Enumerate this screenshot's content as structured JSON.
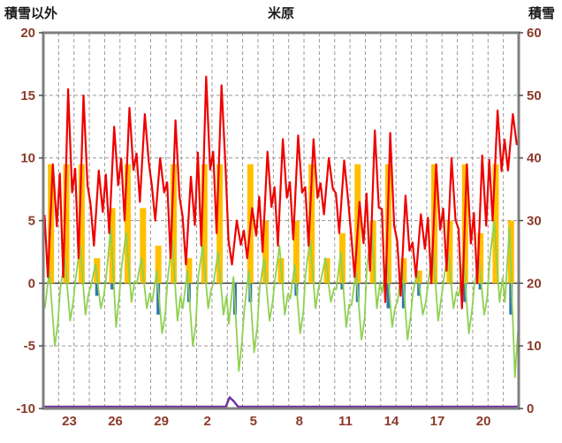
{
  "chart_data": {
    "type": "line",
    "title": "米原",
    "left_axis": {
      "label": "積雪以外",
      "min": -10,
      "max": 20,
      "ticks": [
        20,
        15,
        10,
        5,
        0,
        -5,
        -10
      ]
    },
    "right_axis": {
      "label": "積雪",
      "min": 0,
      "max": 60,
      "ticks": [
        60,
        50,
        40,
        30,
        20,
        10,
        0
      ]
    },
    "x_axis": {
      "days": 31,
      "tick_positions": [
        2,
        5,
        8,
        11,
        14,
        17,
        20,
        23,
        26,
        29
      ],
      "tick_labels": [
        "23",
        "26",
        "29",
        "2",
        "5",
        "8",
        "11",
        "14",
        "17",
        "20"
      ]
    },
    "colors": {
      "frame": "#7f7f7f",
      "grid": "#9a9a9a",
      "zero_line": "#4d4d4d",
      "tick_text": "#8b3a2a",
      "title_text": "#1a1a1a"
    },
    "series": {
      "red_line": {
        "type": "line",
        "axis": "left",
        "color": "#ee0000",
        "daily_min": [
          0.5,
          0.5,
          2,
          3,
          4,
          5,
          6.5,
          5,
          2,
          1.5,
          3,
          4,
          1.5,
          2,
          2.5,
          3,
          3.5,
          3,
          5.5,
          4,
          0.5,
          1,
          -1.5,
          -1,
          0.5,
          0,
          1,
          -2,
          0,
          5,
          9
        ],
        "daily_max": [
          9.5,
          15.5,
          15,
          9,
          12.5,
          14,
          13.5,
          10,
          13,
          8.5,
          16.5,
          15.8,
          5,
          6,
          10.5,
          11.5,
          11.8,
          11.5,
          10,
          9.8,
          6.5,
          12.2,
          12,
          7,
          5.5,
          9.5,
          10,
          9.5,
          10.2,
          13.8,
          13.5
        ]
      },
      "green_line": {
        "type": "line",
        "axis": "left",
        "color": "#8fd14f",
        "daily_min": [
          -5,
          -3,
          -2.5,
          -2,
          -3.5,
          -1.5,
          -2,
          -4,
          -3,
          -5,
          -2,
          -2.5,
          -7,
          -5.5,
          -3,
          -2.5,
          -4,
          -2,
          -1.5,
          -3.5,
          -4.5,
          -2,
          -3.5,
          -4.5,
          -2.5,
          -3,
          -2,
          -4,
          -2.5,
          -1.5,
          -7.5
        ],
        "daily_max": [
          1,
          2,
          3,
          1.5,
          4.5,
          4,
          2,
          1,
          3.5,
          1,
          3,
          2.5,
          0.5,
          1,
          2,
          3,
          1.5,
          3.5,
          2,
          2.5,
          1,
          4.5,
          2,
          1.5,
          1,
          3,
          2.5,
          2,
          2,
          5,
          4.5
        ]
      },
      "orange_bars": {
        "type": "bar",
        "axis": "left",
        "color": "#ffc000",
        "daily_values": [
          9.5,
          9.5,
          9.5,
          2,
          6,
          9.5,
          6,
          3,
          9.5,
          2,
          9.5,
          9.5,
          0,
          9.5,
          5,
          2,
          5,
          9.5,
          2,
          4,
          9.5,
          5,
          9.5,
          2,
          1,
          9.5,
          5,
          9.5,
          4,
          9.5,
          5
        ]
      },
      "blue_bars": {
        "type": "bar",
        "axis": "left",
        "color": "#2e75b6",
        "daily_values": [
          0,
          0,
          0,
          -1,
          -0.5,
          0,
          0,
          -2.5,
          0,
          -1.5,
          0,
          0,
          -2.5,
          -1.5,
          0,
          0,
          -1,
          0,
          0,
          -0.5,
          -1.5,
          0,
          -2,
          -2,
          -1,
          0,
          0,
          -1.5,
          -0.5,
          0,
          -2.5
        ]
      },
      "purple_line": {
        "type": "line",
        "axis": "right",
        "color": "#7030a0",
        "points": [
          [
            0,
            0.3
          ],
          [
            11.9,
            0.3
          ],
          [
            12.15,
            1.8
          ],
          [
            12.4,
            1.2
          ],
          [
            12.7,
            0.3
          ],
          [
            31,
            0.3
          ]
        ]
      }
    }
  }
}
